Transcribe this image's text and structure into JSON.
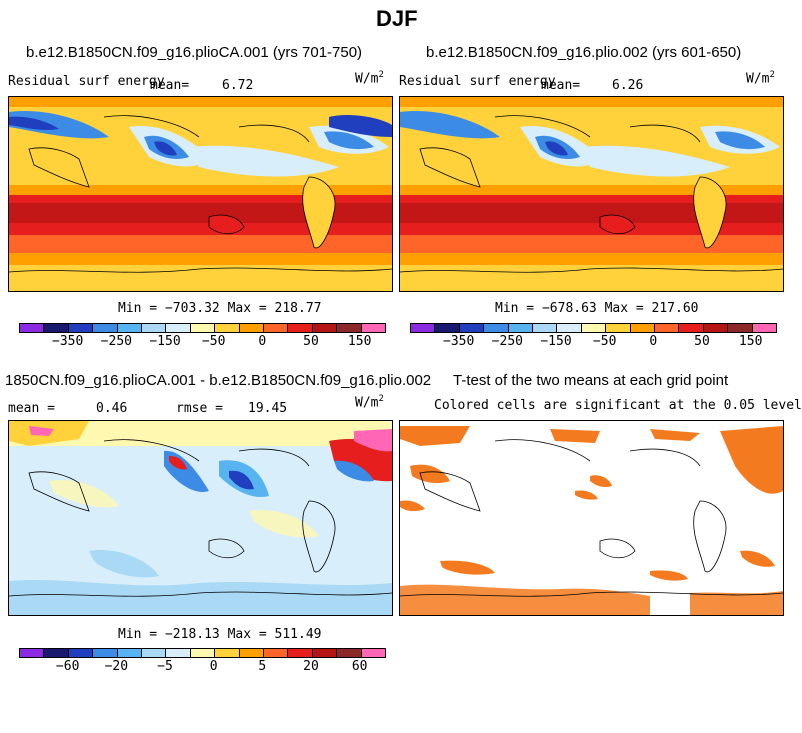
{
  "title": "DJF",
  "panels": [
    {
      "title": "b.e12.B1850CN.f09_g16.plioCA.001 (yrs 701-750)",
      "variable": "Residual surf energy",
      "mean_label": "mean=",
      "mean_value": "6.72",
      "units": "W/m",
      "units_sup": "2",
      "minmax": "Min = −703.32 Max = 218.77"
    },
    {
      "title": "b.e12.B1850CN.f09_g16.plio.002 (yrs 601-650)",
      "variable": "Residual surf energy",
      "mean_label": "mean=",
      "mean_value": "6.26",
      "units": "W/m",
      "units_sup": "2",
      "minmax": "Min = −678.63 Max = 217.60"
    },
    {
      "title": "1850CN.f09_g16.plioCA.001 - b.e12.B1850CN.f09_g16.plio.002",
      "mean_label": "mean =",
      "mean_value": "0.46",
      "rmse_label": "rmse =",
      "rmse_value": "19.45",
      "units": "W/m",
      "units_sup": "2",
      "minmax": "Min = −218.13 Max = 511.49"
    },
    {
      "title": "T-test of the two means at each grid point",
      "subtitle": "Colored cells are significant at the 0.05 level"
    }
  ],
  "colorbar_top": {
    "colors": [
      "#8a2be2",
      "#191970",
      "#1f3fbf",
      "#3c8ce6",
      "#57b4f0",
      "#a9d9f5",
      "#d8eefa",
      "#fff8b0",
      "#ffd23c",
      "#ffa000",
      "#ff6428",
      "#e61e1e",
      "#b41414",
      "#8c2828",
      "#ff66b4"
    ],
    "labels": [
      "−350",
      "−250",
      "−150",
      "−50",
      "0",
      "50",
      "150"
    ]
  },
  "colorbar_bottom": {
    "colors": [
      "#8a2be2",
      "#191970",
      "#1f3fbf",
      "#3c8ce6",
      "#57b4f0",
      "#a9d9f5",
      "#d8eefa",
      "#fff8b0",
      "#ffd23c",
      "#ffa000",
      "#ff6428",
      "#e61e1e",
      "#b41414",
      "#8c2828",
      "#ff66b4"
    ],
    "labels": [
      "−60",
      "−20",
      "−5",
      "0",
      "5",
      "20",
      "60"
    ]
  },
  "palette": {
    "significance": "#f47a1f",
    "coast": "#000000"
  }
}
